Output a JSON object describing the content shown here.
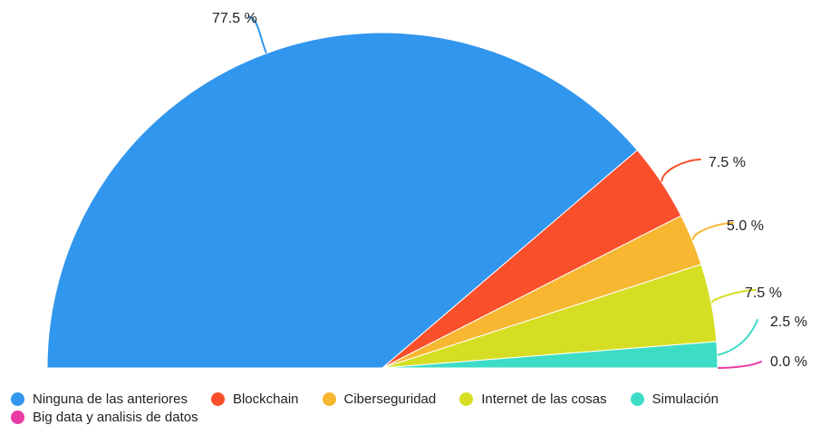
{
  "chart_data": {
    "type": "pie",
    "variant": "semicircle",
    "slices": [
      {
        "name": "Ninguna de las anteriores",
        "value": 77.5,
        "label": "77.5 %",
        "color": "#3196ED"
      },
      {
        "name": "Blockchain",
        "value": 7.5,
        "label": "7.5 %",
        "color": "#F94F2B"
      },
      {
        "name": "Ciberseguridad",
        "value": 5.0,
        "label": "5.0 %",
        "color": "#F7B731"
      },
      {
        "name": "Internet de las cosas",
        "value": 7.5,
        "label": "7.5 %",
        "color": "#D5DE23"
      },
      {
        "name": "Simulación",
        "value": 2.5,
        "label": "2.5 %",
        "color": "#3DDCC7"
      },
      {
        "name": "Big data y analisis de datos",
        "value": 0.0,
        "label": "0.0 %",
        "color": "#E93BA5"
      }
    ],
    "legend_position": "bottom",
    "legend_rows": [
      [
        0,
        1,
        2,
        3,
        4
      ],
      [
        5
      ]
    ]
  }
}
